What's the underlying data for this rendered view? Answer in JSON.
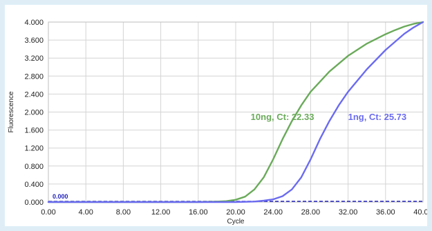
{
  "chart_data": {
    "type": "line",
    "xlabel": "Cycle",
    "ylabel": "Fluorescence",
    "xlim": [
      0,
      40
    ],
    "ylim": [
      0,
      4
    ],
    "x_ticks": [
      "0.00",
      "4.00",
      "8.00",
      "12.00",
      "16.00",
      "20.00",
      "24.00",
      "28.00",
      "32.00",
      "36.00",
      "40.00"
    ],
    "y_ticks": [
      "0.000",
      "0.400",
      "0.800",
      "1.200",
      "1.600",
      "2.000",
      "2.400",
      "2.800",
      "3.200",
      "3.600",
      "4.000"
    ],
    "grid": true,
    "colors": {
      "green": "#6aaa5a",
      "blue": "#6b6bf0",
      "baseline": "#2222bb",
      "grid": "#d4d4d4"
    },
    "series": [
      {
        "name": "10ng",
        "x": [
          0,
          4,
          8,
          12,
          16,
          18,
          19,
          20,
          21,
          22,
          23,
          24,
          25,
          26,
          27,
          28,
          30,
          32,
          34,
          36,
          37,
          38,
          39,
          40
        ],
        "y": [
          0,
          0,
          0,
          0,
          0,
          0.01,
          0.02,
          0.05,
          0.12,
          0.28,
          0.55,
          0.95,
          1.4,
          1.8,
          2.15,
          2.45,
          2.9,
          3.25,
          3.52,
          3.73,
          3.82,
          3.9,
          3.96,
          4.0
        ]
      },
      {
        "name": "1ng",
        "x": [
          0,
          4,
          8,
          12,
          16,
          20,
          22,
          23,
          24,
          25,
          26,
          27,
          28,
          29,
          30,
          31,
          32,
          34,
          36,
          38,
          39,
          40
        ],
        "y": [
          0,
          0,
          0,
          0,
          0,
          0,
          0.01,
          0.03,
          0.06,
          0.13,
          0.28,
          0.55,
          0.95,
          1.4,
          1.8,
          2.15,
          2.45,
          2.95,
          3.38,
          3.74,
          3.88,
          4.0
        ]
      }
    ],
    "threshold": {
      "value": 0.0,
      "label": "0.000"
    },
    "annotations": [
      {
        "text": "10ng, Ct: 22.33",
        "series": "10ng",
        "x": 21.6,
        "y": 1.82
      },
      {
        "text": "1ng, Ct: 25.73",
        "series": "1ng",
        "x": 32.0,
        "y": 1.82
      }
    ]
  }
}
